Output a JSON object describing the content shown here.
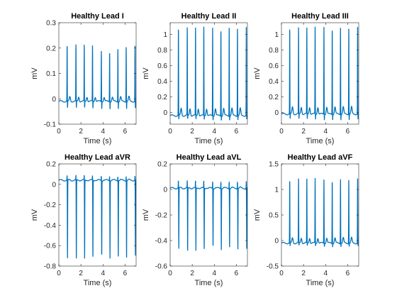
{
  "line_color": "#0072BD",
  "chart_data": [
    {
      "type": "line",
      "title": "Healthy Lead I",
      "xlabel": "Time (s)",
      "ylabel": "mV",
      "xlim": [
        0,
        7
      ],
      "ylim": [
        -0.1,
        0.3
      ],
      "xticks": [
        "0",
        "2",
        "4",
        "6"
      ],
      "yticks": [
        "-0.1",
        "0",
        "0.1",
        "0.2",
        "0.3"
      ],
      "series": [
        {
          "baseline": -0.01,
          "beats": [
            {
              "t": 0.75,
              "peak": 0.215,
              "trough": -0.04
            },
            {
              "t": 1.55,
              "peak": 0.215,
              "trough": -0.04
            },
            {
              "t": 2.3,
              "peak": 0.215,
              "trough": -0.04
            },
            {
              "t": 3.05,
              "peak": 0.21,
              "trough": -0.04
            },
            {
              "t": 3.85,
              "peak": 0.19,
              "trough": -0.04
            },
            {
              "t": 4.6,
              "peak": 0.19,
              "trough": -0.04
            },
            {
              "t": 5.35,
              "peak": 0.2,
              "trough": -0.04
            },
            {
              "t": 6.1,
              "peak": 0.21,
              "trough": -0.04
            },
            {
              "t": 6.9,
              "peak": 0.21,
              "trough": -0.04
            }
          ]
        }
      ]
    },
    {
      "type": "line",
      "title": "Healthy Lead II",
      "xlabel": "Time (s)",
      "ylabel": "mV",
      "xlim": [
        0,
        7
      ],
      "ylim": [
        -0.15,
        1.15
      ],
      "xticks": [
        "0",
        "2",
        "4",
        "6"
      ],
      "yticks": [
        "0",
        "0.2",
        "0.4",
        "0.6",
        "0.8",
        "1"
      ],
      "series": [
        {
          "baseline": -0.04,
          "beats": [
            {
              "t": 0.75,
              "peak": 1.1,
              "trough": -0.1
            },
            {
              "t": 1.55,
              "peak": 1.1,
              "trough": -0.1
            },
            {
              "t": 2.3,
              "peak": 1.1,
              "trough": -0.1
            },
            {
              "t": 3.05,
              "peak": 1.1,
              "trough": -0.1
            },
            {
              "t": 3.85,
              "peak": 1.09,
              "trough": -0.1
            },
            {
              "t": 4.6,
              "peak": 1.09,
              "trough": -0.1
            },
            {
              "t": 5.35,
              "peak": 1.1,
              "trough": -0.1
            },
            {
              "t": 6.1,
              "peak": 1.1,
              "trough": -0.1
            },
            {
              "t": 6.9,
              "peak": 1.1,
              "trough": -0.1
            }
          ]
        }
      ]
    },
    {
      "type": "line",
      "title": "Healthy Lead III",
      "xlabel": "Time (s)",
      "ylabel": "mV",
      "xlim": [
        0,
        7
      ],
      "ylim": [
        -0.15,
        1.15
      ],
      "xticks": [
        "0",
        "2",
        "4",
        "6"
      ],
      "yticks": [
        "0",
        "0.2",
        "0.4",
        "0.6",
        "0.8",
        "1"
      ],
      "series": [
        {
          "baseline": -0.02,
          "beats": [
            {
              "t": 0.75,
              "peak": 1.1,
              "trough": -0.1
            },
            {
              "t": 1.55,
              "peak": 1.1,
              "trough": -0.1
            },
            {
              "t": 2.3,
              "peak": 1.1,
              "trough": -0.1
            },
            {
              "t": 3.05,
              "peak": 1.1,
              "trough": -0.1
            },
            {
              "t": 3.85,
              "peak": 1.1,
              "trough": -0.1
            },
            {
              "t": 4.6,
              "peak": 1.1,
              "trough": -0.1
            },
            {
              "t": 5.35,
              "peak": 1.1,
              "trough": -0.1
            },
            {
              "t": 6.1,
              "peak": 1.1,
              "trough": -0.1
            },
            {
              "t": 6.9,
              "peak": 1.1,
              "trough": -0.1
            }
          ]
        }
      ]
    },
    {
      "type": "line",
      "title": "Healthy Lead aVR",
      "xlabel": "Time (s)",
      "ylabel": "mV",
      "xlim": [
        0,
        7
      ],
      "ylim": [
        -0.8,
        0.2
      ],
      "xticks": [
        "0",
        "2",
        "4",
        "6"
      ],
      "yticks": [
        "-0.8",
        "-0.6",
        "-0.4",
        "-0.2",
        "0",
        "0.2"
      ],
      "series": [
        {
          "baseline": 0.04,
          "beats": [
            {
              "t": 0.75,
              "peak": 0.09,
              "trough": -0.73
            },
            {
              "t": 1.55,
              "peak": 0.09,
              "trough": -0.74
            },
            {
              "t": 2.3,
              "peak": 0.09,
              "trough": -0.74
            },
            {
              "t": 3.05,
              "peak": 0.09,
              "trough": -0.73
            },
            {
              "t": 3.85,
              "peak": 0.09,
              "trough": -0.72
            },
            {
              "t": 4.6,
              "peak": 0.09,
              "trough": -0.72
            },
            {
              "t": 5.35,
              "peak": 0.09,
              "trough": -0.72
            },
            {
              "t": 6.1,
              "peak": 0.09,
              "trough": -0.72
            },
            {
              "t": 6.9,
              "peak": 0.09,
              "trough": -0.72
            }
          ]
        }
      ]
    },
    {
      "type": "line",
      "title": "Healthy Lead aVL",
      "xlabel": "Time (s)",
      "ylabel": "mV",
      "xlim": [
        0,
        7
      ],
      "ylim": [
        -0.6,
        0.2
      ],
      "xticks": [
        "0",
        "2",
        "4",
        "6"
      ],
      "yticks": [
        "-0.6",
        "-0.4",
        "-0.2",
        "0",
        "0.2"
      ],
      "series": [
        {
          "baseline": 0.01,
          "beats": [
            {
              "t": 0.75,
              "peak": 0.07,
              "trough": -0.47
            },
            {
              "t": 1.55,
              "peak": 0.07,
              "trough": -0.49
            },
            {
              "t": 2.3,
              "peak": 0.07,
              "trough": -0.49
            },
            {
              "t": 3.05,
              "peak": 0.07,
              "trough": -0.48
            },
            {
              "t": 3.85,
              "peak": 0.07,
              "trough": -0.46
            },
            {
              "t": 4.6,
              "peak": 0.07,
              "trough": -0.47
            },
            {
              "t": 5.35,
              "peak": 0.07,
              "trough": -0.46
            },
            {
              "t": 6.1,
              "peak": 0.07,
              "trough": -0.47
            },
            {
              "t": 6.9,
              "peak": 0.07,
              "trough": -0.48
            }
          ]
        }
      ]
    },
    {
      "type": "line",
      "title": "Healthy Lead aVF",
      "xlabel": "Time (s)",
      "ylabel": "mV",
      "xlim": [
        0,
        7
      ],
      "ylim": [
        -0.5,
        1.5
      ],
      "xticks": [
        "0",
        "2",
        "4",
        "6"
      ],
      "yticks": [
        "-0.5",
        "0",
        "0.5",
        "1",
        "1.5"
      ],
      "series": [
        {
          "baseline": -0.05,
          "beats": [
            {
              "t": 0.75,
              "peak": 1.2,
              "trough": -0.12
            },
            {
              "t": 1.55,
              "peak": 1.22,
              "trough": -0.12
            },
            {
              "t": 2.3,
              "peak": 1.22,
              "trough": -0.12
            },
            {
              "t": 3.05,
              "peak": 1.22,
              "trough": -0.12
            },
            {
              "t": 3.85,
              "peak": 1.2,
              "trough": -0.12
            },
            {
              "t": 4.6,
              "peak": 1.2,
              "trough": -0.12
            },
            {
              "t": 5.35,
              "peak": 1.22,
              "trough": -0.12
            },
            {
              "t": 6.1,
              "peak": 1.22,
              "trough": -0.12
            },
            {
              "t": 6.9,
              "peak": 1.22,
              "trough": -0.12
            }
          ]
        }
      ]
    }
  ]
}
